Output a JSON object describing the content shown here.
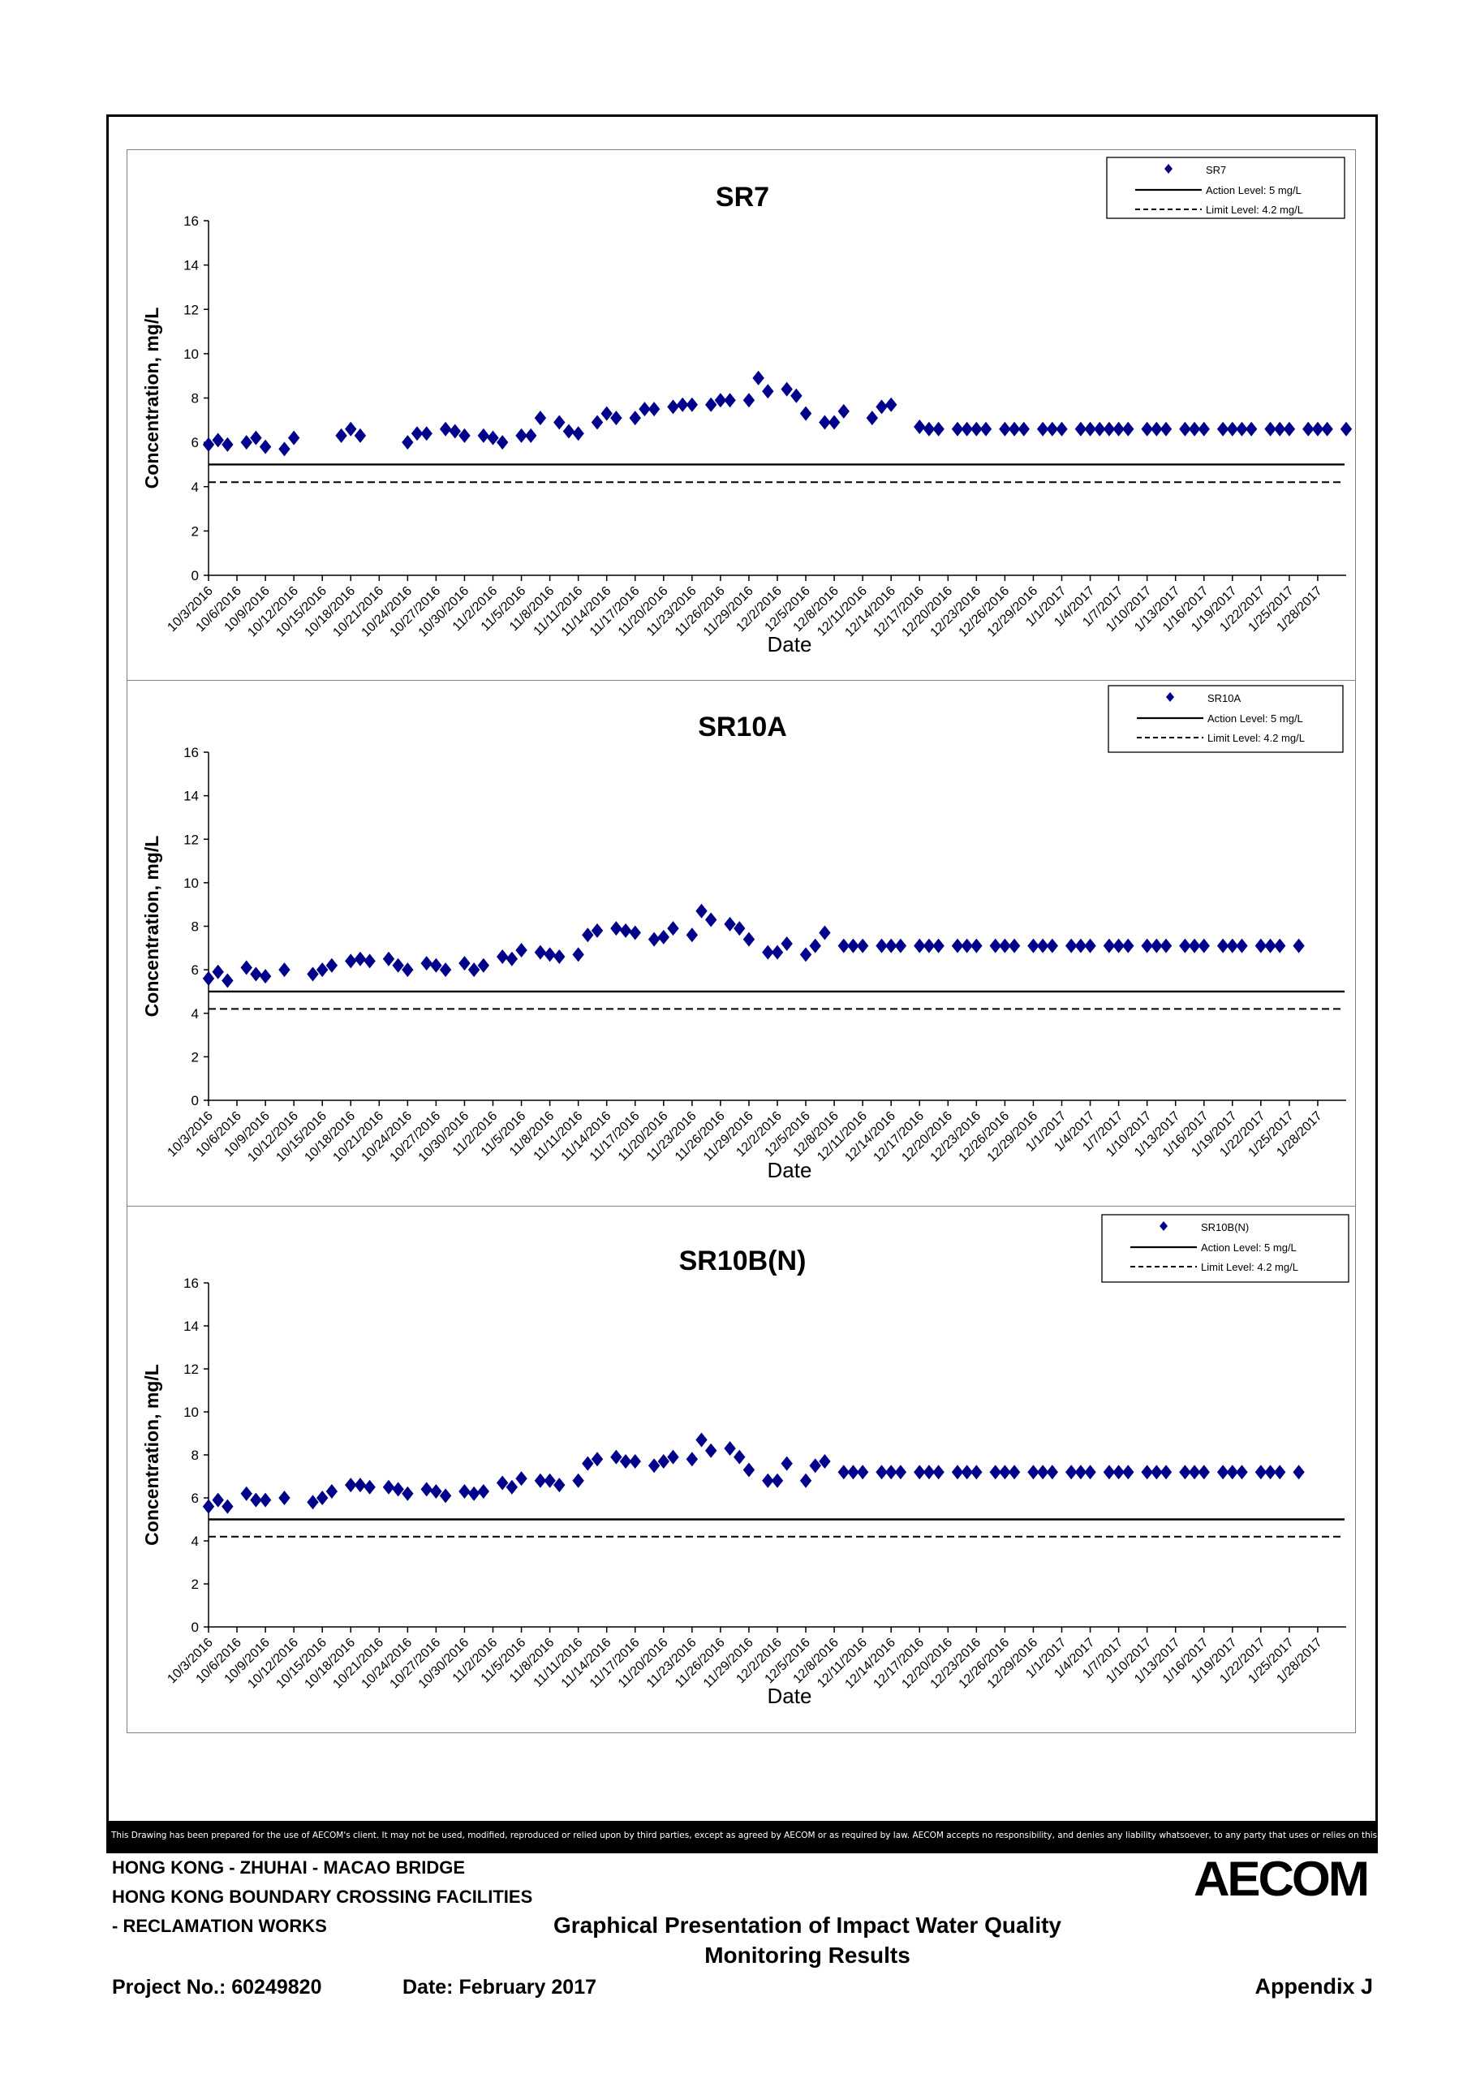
{
  "charts": [
    {
      "legend": {
        "series": "SR7",
        "action": "Action Level: 5 mg/L",
        "limit": "Limit Level: 4.2 mg/L"
      }
    },
    {
      "legend": {
        "series": "SR10A",
        "action": "Action Level: 5 mg/L",
        "limit": "Limit Level: 4.2 mg/L"
      }
    },
    {
      "legend": {
        "series": "SR10B(N)",
        "action": "Action Level: 5 mg/L",
        "limit": "Limit Level: 4.2 mg/L"
      }
    }
  ],
  "chart_data": [
    {
      "type": "scatter",
      "title": "SR7",
      "xlabel": "Date",
      "ylabel": "Concentration, mg/L",
      "ylim": [
        0,
        16
      ],
      "yticks": [
        0,
        2,
        4,
        6,
        8,
        10,
        12,
        14,
        16
      ],
      "xlim": [
        "10/3/2016",
        "1/31/2017"
      ],
      "xticks": [
        "10/3/2016",
        "10/6/2016",
        "10/9/2016",
        "10/12/2016",
        "10/15/2016",
        "10/18/2016",
        "10/21/2016",
        "10/24/2016",
        "10/27/2016",
        "10/30/2016",
        "11/2/2016",
        "11/5/2016",
        "11/8/2016",
        "11/11/2016",
        "11/14/2016",
        "11/17/2016",
        "11/20/2016",
        "11/23/2016",
        "11/26/2016",
        "11/29/2016",
        "12/2/2016",
        "12/5/2016",
        "12/8/2016",
        "12/11/2016",
        "12/14/2016",
        "12/17/2016",
        "12/20/2016",
        "12/23/2016",
        "12/26/2016",
        "12/29/2016",
        "1/1/2017",
        "1/4/2017",
        "1/7/2017",
        "1/10/2017",
        "1/13/2017",
        "1/16/2017",
        "1/19/2017",
        "1/22/2017",
        "1/25/2017",
        "1/28/2017"
      ],
      "grid": false,
      "legend_position": "top-right",
      "series": [
        {
          "name": "SR7",
          "marker": "diamond",
          "color": "#00008B",
          "x": [
            "10/3/2016",
            "10/4/2016",
            "10/5/2016",
            "10/7/2016",
            "10/8/2016",
            "10/9/2016",
            "10/11/2016",
            "10/12/2016",
            "10/17/2016",
            "10/18/2016",
            "10/19/2016",
            "10/24/2016",
            "10/25/2016",
            "10/26/2016",
            "10/28/2016",
            "10/29/2016",
            "10/30/2016",
            "11/1/2016",
            "11/2/2016",
            "11/3/2016",
            "11/5/2016",
            "11/6/2016",
            "11/7/2016",
            "11/9/2016",
            "11/10/2016",
            "11/11/2016",
            "11/13/2016",
            "11/14/2016",
            "11/15/2016",
            "11/17/2016",
            "11/18/2016",
            "11/19/2016",
            "11/21/2016",
            "11/22/2016",
            "11/23/2016",
            "11/25/2016",
            "11/26/2016",
            "11/27/2016",
            "11/29/2016",
            "11/30/2016",
            "12/1/2016",
            "12/3/2016",
            "12/4/2016",
            "12/5/2016",
            "12/7/2016",
            "12/8/2016",
            "12/9/2016",
            "12/12/2016",
            "12/13/2016",
            "12/14/2016",
            "12/17/2016",
            "12/18/2016",
            "12/19/2016",
            "12/21/2016",
            "12/22/2016",
            "12/23/2016",
            "12/24/2016",
            "12/26/2016",
            "12/27/2016",
            "12/28/2016",
            "12/30/2016",
            "12/31/2016",
            "1/1/2017",
            "1/3/2017",
            "1/4/2017",
            "1/5/2017",
            "1/6/2017",
            "1/7/2017",
            "1/8/2017",
            "1/10/2017",
            "1/11/2017",
            "1/12/2017",
            "1/14/2017",
            "1/15/2017",
            "1/16/2017",
            "1/18/2017",
            "1/19/2017",
            "1/20/2017",
            "1/21/2017",
            "1/23/2017",
            "1/24/2017",
            "1/25/2017",
            "1/27/2017",
            "1/28/2017",
            "1/29/2017",
            "1/31/2017"
          ],
          "y": [
            5.9,
            6.1,
            5.9,
            6.0,
            6.2,
            5.8,
            5.7,
            6.2,
            6.3,
            6.6,
            6.3,
            6.0,
            6.4,
            6.4,
            6.6,
            6.5,
            6.3,
            6.3,
            6.2,
            6.0,
            6.3,
            6.3,
            7.1,
            6.9,
            6.5,
            6.4,
            6.9,
            7.3,
            7.1,
            7.1,
            7.5,
            7.5,
            7.6,
            7.7,
            7.7,
            7.7,
            7.9,
            7.9,
            7.9,
            8.9,
            8.3,
            8.4,
            8.1,
            7.3,
            6.9,
            6.9,
            7.4,
            7.1,
            7.6,
            7.7,
            6.7,
            6.6,
            6.6,
            6.6,
            6.6,
            6.6,
            6.6,
            6.6,
            6.6,
            6.6,
            6.6,
            6.6,
            6.6,
            6.6,
            6.6,
            6.6,
            6.6,
            6.6,
            6.6,
            6.6,
            6.6,
            6.6,
            6.6,
            6.6,
            6.6,
            6.6,
            6.6,
            6.6,
            6.6,
            6.6,
            6.6,
            6.6,
            6.6,
            6.6,
            6.6,
            6.6
          ]
        },
        {
          "name": "Action Level: 5 mg/L",
          "style": "solid",
          "y": 5
        },
        {
          "name": "Limit Level: 4.2 mg/L",
          "style": "dashed",
          "y": 4.2
        }
      ]
    },
    {
      "type": "scatter",
      "title": "SR10A",
      "xlabel": "Date",
      "ylabel": "Concentration, mg/L",
      "ylim": [
        0,
        16
      ],
      "yticks": [
        0,
        2,
        4,
        6,
        8,
        10,
        12,
        14,
        16
      ],
      "xlim": [
        "10/3/2016",
        "1/31/2017"
      ],
      "xticks": [
        "10/3/2016",
        "10/6/2016",
        "10/9/2016",
        "10/12/2016",
        "10/15/2016",
        "10/18/2016",
        "10/21/2016",
        "10/24/2016",
        "10/27/2016",
        "10/30/2016",
        "11/2/2016",
        "11/5/2016",
        "11/8/2016",
        "11/11/2016",
        "11/14/2016",
        "11/17/2016",
        "11/20/2016",
        "11/23/2016",
        "11/26/2016",
        "11/29/2016",
        "12/2/2016",
        "12/5/2016",
        "12/8/2016",
        "12/11/2016",
        "12/14/2016",
        "12/17/2016",
        "12/20/2016",
        "12/23/2016",
        "12/26/2016",
        "12/29/2016",
        "1/1/2017",
        "1/4/2017",
        "1/7/2017",
        "1/10/2017",
        "1/13/2017",
        "1/16/2017",
        "1/19/2017",
        "1/22/2017",
        "1/25/2017",
        "1/28/2017"
      ],
      "grid": false,
      "legend_position": "top-right",
      "series": [
        {
          "name": "SR10A",
          "marker": "diamond",
          "color": "#00008B",
          "x": [
            "10/3/2016",
            "10/4/2016",
            "10/5/2016",
            "10/7/2016",
            "10/8/2016",
            "10/9/2016",
            "10/11/2016",
            "10/14/2016",
            "10/15/2016",
            "10/16/2016",
            "10/18/2016",
            "10/19/2016",
            "10/20/2016",
            "10/22/2016",
            "10/23/2016",
            "10/24/2016",
            "10/26/2016",
            "10/27/2016",
            "10/28/2016",
            "10/30/2016",
            "10/31/2016",
            "11/1/2016",
            "11/3/2016",
            "11/4/2016",
            "11/5/2016",
            "11/7/2016",
            "11/8/2016",
            "11/9/2016",
            "11/11/2016",
            "11/12/2016",
            "11/13/2016",
            "11/15/2016",
            "11/16/2016",
            "11/17/2016",
            "11/19/2016",
            "11/20/2016",
            "11/21/2016",
            "11/23/2016",
            "11/24/2016",
            "11/25/2016",
            "11/27/2016",
            "11/28/2016",
            "11/29/2016",
            "12/1/2016",
            "12/2/2016",
            "12/3/2016",
            "12/5/2016",
            "12/6/2016",
            "12/7/2016",
            "12/9/2016",
            "12/10/2016",
            "12/11/2016",
            "12/13/2016",
            "12/14/2016",
            "12/15/2016",
            "12/17/2016",
            "12/18/2016",
            "12/19/2016",
            "12/21/2016",
            "12/22/2016",
            "12/23/2016",
            "12/25/2016",
            "12/26/2016",
            "12/27/2016",
            "12/29/2016",
            "12/30/2016",
            "12/31/2016",
            "1/2/2017",
            "1/3/2017",
            "1/4/2017",
            "1/6/2017",
            "1/7/2017",
            "1/8/2017",
            "1/10/2017",
            "1/11/2017",
            "1/12/2017",
            "1/14/2017",
            "1/15/2017",
            "1/16/2017",
            "1/18/2017",
            "1/19/2017",
            "1/20/2017",
            "1/22/2017",
            "1/23/2017",
            "1/24/2017",
            "1/26/2017"
          ],
          "y": [
            5.6,
            5.9,
            5.5,
            6.1,
            5.8,
            5.7,
            6.0,
            5.8,
            6.0,
            6.2,
            6.4,
            6.5,
            6.4,
            6.5,
            6.2,
            6.0,
            6.3,
            6.2,
            6.0,
            6.3,
            6.0,
            6.2,
            6.6,
            6.5,
            6.9,
            6.8,
            6.7,
            6.6,
            6.7,
            7.6,
            7.8,
            7.9,
            7.8,
            7.7,
            7.4,
            7.5,
            7.9,
            7.6,
            8.7,
            8.3,
            8.1,
            7.9,
            7.4,
            6.8,
            6.8,
            7.2,
            6.7,
            7.1,
            7.7,
            7.1,
            7.1,
            7.1,
            7.1,
            7.1,
            7.1,
            7.1,
            7.1,
            7.1,
            7.1,
            7.1,
            7.1,
            7.1,
            7.1,
            7.1,
            7.1,
            7.1,
            7.1,
            7.1,
            7.1,
            7.1,
            7.1,
            7.1,
            7.1,
            7.1,
            7.1,
            7.1,
            7.1,
            7.1,
            7.1,
            7.1,
            7.1,
            7.1,
            7.1,
            7.1,
            7.1,
            7.1
          ]
        },
        {
          "name": "Action Level: 5 mg/L",
          "style": "solid",
          "y": 5
        },
        {
          "name": "Limit Level: 4.2 mg/L",
          "style": "dashed",
          "y": 4.2
        }
      ]
    },
    {
      "type": "scatter",
      "title": "SR10B(N)",
      "xlabel": "Date",
      "ylabel": "Concentration, mg/L",
      "ylim": [
        0,
        16
      ],
      "yticks": [
        0,
        2,
        4,
        6,
        8,
        10,
        12,
        14,
        16
      ],
      "xlim": [
        "10/3/2016",
        "1/31/2017"
      ],
      "xticks": [
        "10/3/2016",
        "10/6/2016",
        "10/9/2016",
        "10/12/2016",
        "10/15/2016",
        "10/18/2016",
        "10/21/2016",
        "10/24/2016",
        "10/27/2016",
        "10/30/2016",
        "11/2/2016",
        "11/5/2016",
        "11/8/2016",
        "11/11/2016",
        "11/14/2016",
        "11/17/2016",
        "11/20/2016",
        "11/23/2016",
        "11/26/2016",
        "11/29/2016",
        "12/2/2016",
        "12/5/2016",
        "12/8/2016",
        "12/11/2016",
        "12/14/2016",
        "12/17/2016",
        "12/20/2016",
        "12/23/2016",
        "12/26/2016",
        "12/29/2016",
        "1/1/2017",
        "1/4/2017",
        "1/7/2017",
        "1/10/2017",
        "1/13/2017",
        "1/16/2017",
        "1/19/2017",
        "1/22/2017",
        "1/25/2017",
        "1/28/2017"
      ],
      "grid": false,
      "legend_position": "top-right",
      "series": [
        {
          "name": "SR10B(N)",
          "marker": "diamond",
          "color": "#00008B",
          "x": [
            "10/3/2016",
            "10/4/2016",
            "10/5/2016",
            "10/7/2016",
            "10/8/2016",
            "10/9/2016",
            "10/11/2016",
            "10/14/2016",
            "10/15/2016",
            "10/16/2016",
            "10/18/2016",
            "10/19/2016",
            "10/20/2016",
            "10/22/2016",
            "10/23/2016",
            "10/24/2016",
            "10/26/2016",
            "10/27/2016",
            "10/28/2016",
            "10/30/2016",
            "10/31/2016",
            "11/1/2016",
            "11/3/2016",
            "11/4/2016",
            "11/5/2016",
            "11/7/2016",
            "11/8/2016",
            "11/9/2016",
            "11/11/2016",
            "11/12/2016",
            "11/13/2016",
            "11/15/2016",
            "11/16/2016",
            "11/17/2016",
            "11/19/2016",
            "11/20/2016",
            "11/21/2016",
            "11/23/2016",
            "11/24/2016",
            "11/25/2016",
            "11/27/2016",
            "11/28/2016",
            "11/29/2016",
            "12/1/2016",
            "12/2/2016",
            "12/3/2016",
            "12/5/2016",
            "12/6/2016",
            "12/7/2016",
            "12/9/2016",
            "12/10/2016",
            "12/11/2016",
            "12/13/2016",
            "12/14/2016",
            "12/15/2016",
            "12/17/2016",
            "12/18/2016",
            "12/19/2016",
            "12/21/2016",
            "12/22/2016",
            "12/23/2016",
            "12/25/2016",
            "12/26/2016",
            "12/27/2016",
            "12/29/2016",
            "12/30/2016",
            "12/31/2016",
            "1/2/2017",
            "1/3/2017",
            "1/4/2017",
            "1/6/2017",
            "1/7/2017",
            "1/8/2017",
            "1/10/2017",
            "1/11/2017",
            "1/12/2017",
            "1/14/2017",
            "1/15/2017",
            "1/16/2017",
            "1/18/2017",
            "1/19/2017",
            "1/20/2017",
            "1/22/2017",
            "1/23/2017",
            "1/24/2017",
            "1/26/2017"
          ],
          "y": [
            5.6,
            5.9,
            5.6,
            6.2,
            5.9,
            5.9,
            6.0,
            5.8,
            6.0,
            6.3,
            6.6,
            6.6,
            6.5,
            6.5,
            6.4,
            6.2,
            6.4,
            6.3,
            6.1,
            6.3,
            6.2,
            6.3,
            6.7,
            6.5,
            6.9,
            6.8,
            6.8,
            6.6,
            6.8,
            7.6,
            7.8,
            7.9,
            7.7,
            7.7,
            7.5,
            7.7,
            7.9,
            7.8,
            8.7,
            8.2,
            8.3,
            7.9,
            7.3,
            6.8,
            6.8,
            7.6,
            6.8,
            7.5,
            7.7,
            7.2,
            7.2,
            7.2,
            7.2,
            7.2,
            7.2,
            7.2,
            7.2,
            7.2,
            7.2,
            7.2,
            7.2,
            7.2,
            7.2,
            7.2,
            7.2,
            7.2,
            7.2,
            7.2,
            7.2,
            7.2,
            7.2,
            7.2,
            7.2,
            7.2,
            7.2,
            7.2,
            7.2,
            7.2,
            7.2,
            7.2,
            7.2,
            7.2,
            7.2,
            7.2,
            7.2,
            7.2
          ]
        },
        {
          "name": "Action Level: 5 mg/L",
          "style": "solid",
          "y": 5
        },
        {
          "name": "Limit Level: 4.2 mg/L",
          "style": "dashed",
          "y": 4.2
        }
      ]
    }
  ],
  "footer": {
    "disclaimer": "This Drawing has been prepared for the use of AECOM's client. It may not be used, modified, reproduced or relied upon by third parties, except as agreed by AECOM or as required by law. AECOM accepts no responsibility, and denies any liability whatsoever, to any party that uses or relies on this drawing without AECOM's express written consent.",
    "project_line1": "HONG KONG - ZHUHAI - MACAO BRIDGE",
    "project_line2": "HONG KONG BOUNDARY CROSSING FACILITIES",
    "project_line3": "- RECLAMATION WORKS",
    "doc_title_line1": "Graphical Presentation of Impact Water Quality",
    "doc_title_line2": "Monitoring Results",
    "project_no": "Project No.: 60249820",
    "date": "Date: February 2017",
    "appendix": "Appendix J",
    "logo_text": "AECOM"
  }
}
